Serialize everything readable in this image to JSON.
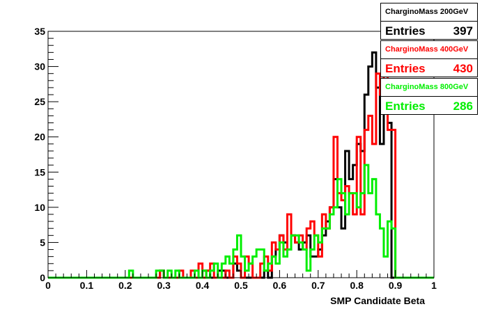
{
  "chart_data": {
    "type": "histogram",
    "xlabel": "SMP Candidate Beta",
    "ylabel": "",
    "xlim": [
      0,
      1
    ],
    "ylim": [
      0,
      35
    ],
    "xticks": [
      "0",
      "0.1",
      "0.2",
      "0.3",
      "0.4",
      "0.5",
      "0.6",
      "0.7",
      "0.8",
      "0.9",
      "1"
    ],
    "yticks": [
      "0",
      "5",
      "10",
      "15",
      "20",
      "25",
      "30",
      "35"
    ],
    "bin_width": 0.01,
    "series": [
      {
        "name": "CharginoMass 200GeV",
        "entries_label": "Entries",
        "entries": "397",
        "color": "#000000",
        "bins": [
          [
            0.29,
            1
          ],
          [
            0.4,
            1
          ],
          [
            0.41,
            1
          ],
          [
            0.44,
            1
          ],
          [
            0.45,
            1
          ],
          [
            0.48,
            2
          ],
          [
            0.49,
            1
          ],
          [
            0.56,
            1
          ],
          [
            0.58,
            3
          ],
          [
            0.59,
            4
          ],
          [
            0.6,
            6
          ],
          [
            0.61,
            5
          ],
          [
            0.62,
            4
          ],
          [
            0.63,
            6
          ],
          [
            0.64,
            5
          ],
          [
            0.65,
            4
          ],
          [
            0.66,
            5
          ],
          [
            0.67,
            6
          ],
          [
            0.68,
            3
          ],
          [
            0.69,
            3
          ],
          [
            0.7,
            4
          ],
          [
            0.71,
            6
          ],
          [
            0.72,
            8
          ],
          [
            0.73,
            10
          ],
          [
            0.74,
            14
          ],
          [
            0.75,
            10
          ],
          [
            0.76,
            7
          ],
          [
            0.77,
            18
          ],
          [
            0.78,
            14
          ],
          [
            0.79,
            16
          ],
          [
            0.8,
            19
          ],
          [
            0.81,
            18
          ],
          [
            0.82,
            26
          ],
          [
            0.83,
            30
          ],
          [
            0.84,
            32
          ],
          [
            0.85,
            27
          ],
          [
            0.86,
            19
          ],
          [
            0.87,
            24
          ],
          [
            0.88,
            22
          ]
        ]
      },
      {
        "name": "CharginoMass 400GeV",
        "entries_label": "Entries",
        "entries": "430",
        "color": "#ff0000",
        "bins": [
          [
            0.29,
            1
          ],
          [
            0.34,
            1
          ],
          [
            0.37,
            1
          ],
          [
            0.39,
            2
          ],
          [
            0.41,
            1
          ],
          [
            0.42,
            2
          ],
          [
            0.46,
            1
          ],
          [
            0.48,
            3
          ],
          [
            0.49,
            2
          ],
          [
            0.51,
            3
          ],
          [
            0.52,
            2
          ],
          [
            0.55,
            2
          ],
          [
            0.56,
            3
          ],
          [
            0.57,
            1
          ],
          [
            0.58,
            5
          ],
          [
            0.59,
            4
          ],
          [
            0.6,
            6
          ],
          [
            0.61,
            4
          ],
          [
            0.62,
            9
          ],
          [
            0.63,
            6
          ],
          [
            0.64,
            5
          ],
          [
            0.65,
            6
          ],
          [
            0.66,
            4
          ],
          [
            0.67,
            7
          ],
          [
            0.68,
            8
          ],
          [
            0.69,
            6
          ],
          [
            0.7,
            3
          ],
          [
            0.71,
            9
          ],
          [
            0.72,
            7
          ],
          [
            0.73,
            10
          ],
          [
            0.74,
            20
          ],
          [
            0.75,
            12
          ],
          [
            0.76,
            11
          ],
          [
            0.77,
            13
          ],
          [
            0.78,
            12
          ],
          [
            0.79,
            9
          ],
          [
            0.8,
            20
          ],
          [
            0.81,
            9
          ],
          [
            0.82,
            21
          ],
          [
            0.83,
            23
          ],
          [
            0.84,
            19
          ],
          [
            0.85,
            29
          ],
          [
            0.86,
            26
          ],
          [
            0.87,
            29
          ],
          [
            0.88,
            21
          ],
          [
            0.89,
            21
          ]
        ]
      },
      {
        "name": "CharginoMass 800GeV",
        "entries_label": "Entries",
        "entries": "286",
        "color": "#00ee00",
        "bins": [
          [
            0.21,
            1
          ],
          [
            0.28,
            1
          ],
          [
            0.29,
            1
          ],
          [
            0.31,
            1
          ],
          [
            0.33,
            1
          ],
          [
            0.38,
            1
          ],
          [
            0.4,
            1
          ],
          [
            0.42,
            1
          ],
          [
            0.43,
            2
          ],
          [
            0.45,
            2
          ],
          [
            0.46,
            3
          ],
          [
            0.47,
            2
          ],
          [
            0.48,
            4
          ],
          [
            0.49,
            6
          ],
          [
            0.5,
            3
          ],
          [
            0.51,
            1
          ],
          [
            0.52,
            2
          ],
          [
            0.53,
            3
          ],
          [
            0.54,
            4
          ],
          [
            0.55,
            4
          ],
          [
            0.56,
            1
          ],
          [
            0.57,
            2
          ],
          [
            0.58,
            3
          ],
          [
            0.59,
            2
          ],
          [
            0.6,
            5
          ],
          [
            0.61,
            3
          ],
          [
            0.62,
            4
          ],
          [
            0.63,
            6
          ],
          [
            0.64,
            6
          ],
          [
            0.65,
            5
          ],
          [
            0.66,
            4
          ],
          [
            0.67,
            1
          ],
          [
            0.68,
            4
          ],
          [
            0.69,
            6
          ],
          [
            0.7,
            5
          ],
          [
            0.71,
            7
          ],
          [
            0.72,
            7
          ],
          [
            0.73,
            9
          ],
          [
            0.74,
            10
          ],
          [
            0.75,
            14
          ],
          [
            0.76,
            12
          ],
          [
            0.77,
            9
          ],
          [
            0.78,
            12
          ],
          [
            0.79,
            12
          ],
          [
            0.8,
            10
          ],
          [
            0.81,
            12
          ],
          [
            0.82,
            16
          ],
          [
            0.83,
            12
          ],
          [
            0.84,
            14
          ],
          [
            0.85,
            9
          ],
          [
            0.86,
            7
          ],
          [
            0.87,
            3
          ],
          [
            0.88,
            8
          ],
          [
            0.89,
            7
          ],
          [
            0.9,
            0
          ]
        ]
      }
    ]
  }
}
